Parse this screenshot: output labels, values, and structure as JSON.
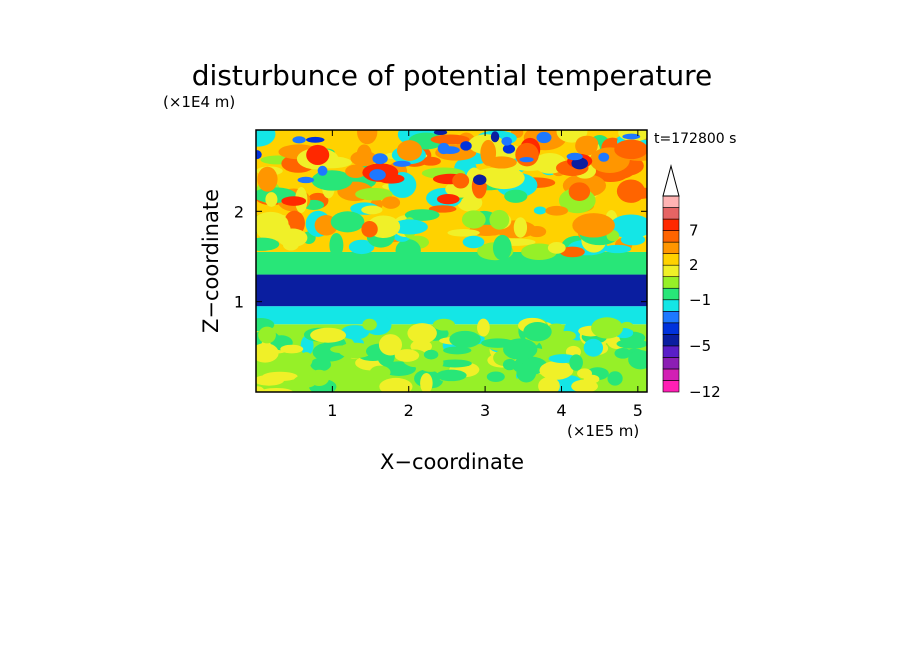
{
  "chart_data": {
    "type": "heatmap",
    "title": "disturbunce of potential temperature",
    "time_label": "t=172800 s",
    "xlabel": "X−coordinate",
    "ylabel": "Z−coordinate",
    "x_unit": "(×1E5 m)",
    "y_unit": "(×1E4 m)",
    "xlim": [
      0,
      5.12
    ],
    "ylim": [
      0,
      2.9
    ],
    "x_ticks": [
      1,
      2,
      3,
      4,
      5
    ],
    "x_tick_labels": [
      "1",
      "2",
      "3",
      "4",
      "5"
    ],
    "y_ticks": [
      1,
      2
    ],
    "y_tick_labels": [
      "1",
      "2"
    ],
    "colorbar": {
      "levels": [
        -12,
        -10,
        -8,
        -6,
        -5,
        -4,
        -3,
        -2,
        -1,
        0,
        1,
        2,
        3,
        5,
        7,
        9,
        11
      ],
      "colors": [
        "#ff1fb4",
        "#d21fb4",
        "#8c1eb4",
        "#5a1ec8",
        "#0a1ea0",
        "#0032dc",
        "#1e78ff",
        "#14e6e6",
        "#28e678",
        "#96f028",
        "#f0f028",
        "#ffd200",
        "#ff9600",
        "#ff6400",
        "#ff2800",
        "#e66464",
        "#ffb4b4"
      ],
      "labels": [
        {
          "level": -12,
          "text": "−12"
        },
        {
          "level": -5,
          "text": "−5"
        },
        {
          "level": -1,
          "text": "−1"
        },
        {
          "level": 2,
          "text": "2"
        },
        {
          "level": 7,
          "text": "7"
        }
      ],
      "extend": "max"
    },
    "field_description": [
      {
        "z_range": [
          0,
          0.75
        ],
        "value": 0
      },
      {
        "z_range": [
          0.75,
          0.95
        ],
        "value": -1.5
      },
      {
        "z_range": [
          0.95,
          1.3
        ],
        "value": -5
      },
      {
        "z_range": [
          1.3,
          1.55
        ],
        "value": -1
      },
      {
        "z_range": [
          1.55,
          2.9
        ],
        "value": 2
      }
    ]
  }
}
